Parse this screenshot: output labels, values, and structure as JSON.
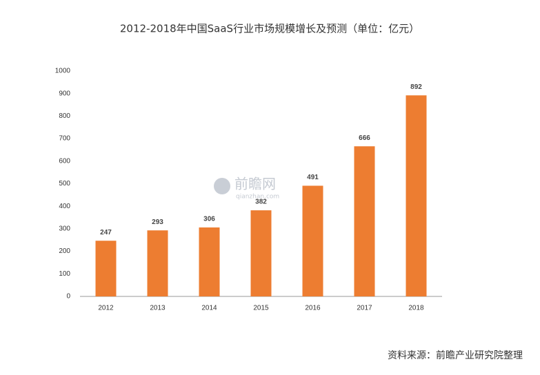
{
  "chart_data": {
    "type": "bar",
    "title": "2012-2018年中国SaaS行业市场规模增长及预测（单位：亿元）",
    "categories": [
      "2012",
      "2013",
      "2014",
      "2015",
      "2016",
      "2017",
      "2018"
    ],
    "values": [
      247,
      293,
      306,
      382,
      491,
      666,
      892
    ],
    "color": "#ed7d31",
    "ylim": [
      0,
      1000
    ],
    "yticks": [
      0,
      100,
      200,
      300,
      400,
      500,
      600,
      700,
      800,
      900,
      1000
    ],
    "grid": false,
    "watermark": [
      "前瞻网",
      "qianzhan.com"
    ],
    "source": "资料来源：前瞻产业研究院整理"
  }
}
